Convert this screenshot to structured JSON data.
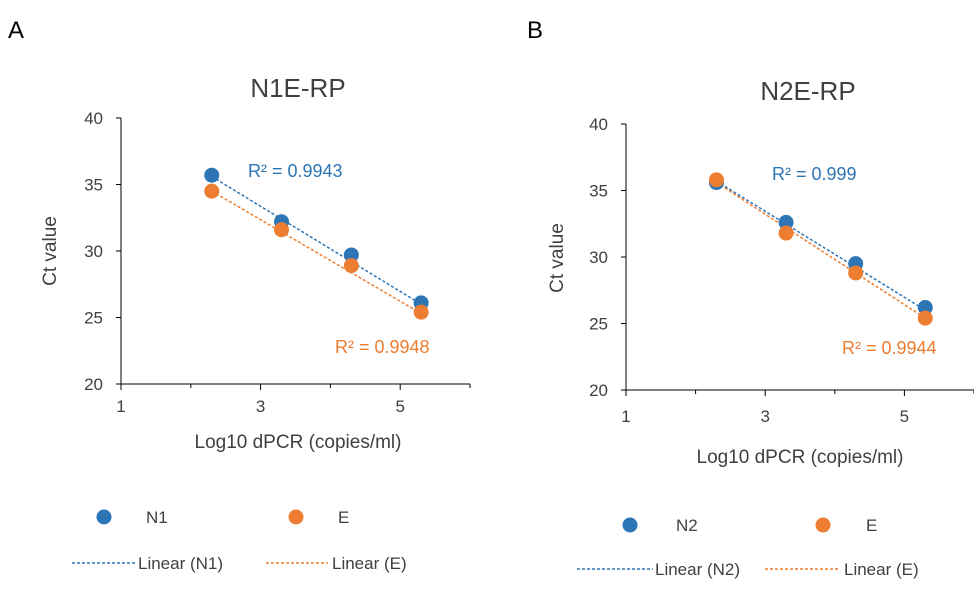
{
  "colors": {
    "blue": "#2E75B6",
    "orange": "#ED7D31",
    "axis": "#000000",
    "text": "#404040"
  },
  "chart_data": [
    {
      "panel_label": "A",
      "type": "scatter",
      "title": "N1E-RP",
      "xlabel": "Log10 dPCR (copies/ml)",
      "ylabel": "Ct value",
      "xlim": [
        1,
        6
      ],
      "ylim": [
        20,
        40
      ],
      "x_ticks": [
        1,
        3,
        5
      ],
      "y_ticks": [
        20,
        25,
        30,
        35,
        40
      ],
      "grid": false,
      "legend_position": "bottom",
      "series": [
        {
          "name": "N1",
          "color": "#2E75B6",
          "x": [
            2.3,
            3.3,
            4.3,
            5.3
          ],
          "y": [
            35.7,
            32.2,
            29.7,
            26.1
          ]
        },
        {
          "name": "E",
          "color": "#ED7D31",
          "x": [
            2.3,
            3.3,
            4.3,
            5.3
          ],
          "y": [
            34.5,
            31.6,
            28.9,
            25.4
          ]
        }
      ],
      "trendlines": [
        {
          "name": "Linear (N1)",
          "color": "#2E75B6",
          "x": [
            2.3,
            5.3
          ],
          "y": [
            35.6,
            26.0
          ],
          "r2_label": "R² = 0.9943"
        },
        {
          "name": "Linear (E)",
          "color": "#ED7D31",
          "x": [
            2.3,
            5.3
          ],
          "y": [
            34.5,
            25.3
          ],
          "r2_label": "R² = 0.9948"
        }
      ]
    },
    {
      "panel_label": "B",
      "type": "scatter",
      "title": "N2E-RP",
      "xlabel": "Log10 dPCR (copies/ml)",
      "ylabel": "Ct value",
      "xlim": [
        1,
        6
      ],
      "ylim": [
        20,
        40
      ],
      "x_ticks": [
        1,
        3,
        5
      ],
      "y_ticks": [
        20,
        25,
        30,
        35,
        40
      ],
      "grid": false,
      "legend_position": "bottom",
      "series": [
        {
          "name": "N2",
          "color": "#2E75B6",
          "x": [
            2.3,
            3.3,
            4.3,
            5.3
          ],
          "y": [
            35.6,
            32.6,
            29.5,
            26.2
          ]
        },
        {
          "name": "E",
          "color": "#ED7D31",
          "x": [
            2.3,
            3.3,
            4.3,
            5.3
          ],
          "y": [
            35.8,
            31.8,
            28.8,
            25.4
          ]
        }
      ],
      "trendlines": [
        {
          "name": "Linear (N2)",
          "color": "#2E75B6",
          "x": [
            2.3,
            5.3
          ],
          "y": [
            35.7,
            26.0
          ],
          "r2_label": "R² = 0.999"
        },
        {
          "name": "Linear (E)",
          "color": "#ED7D31",
          "x": [
            2.3,
            5.3
          ],
          "y": [
            35.6,
            25.4
          ],
          "r2_label": "R² = 0.9944"
        }
      ]
    }
  ]
}
